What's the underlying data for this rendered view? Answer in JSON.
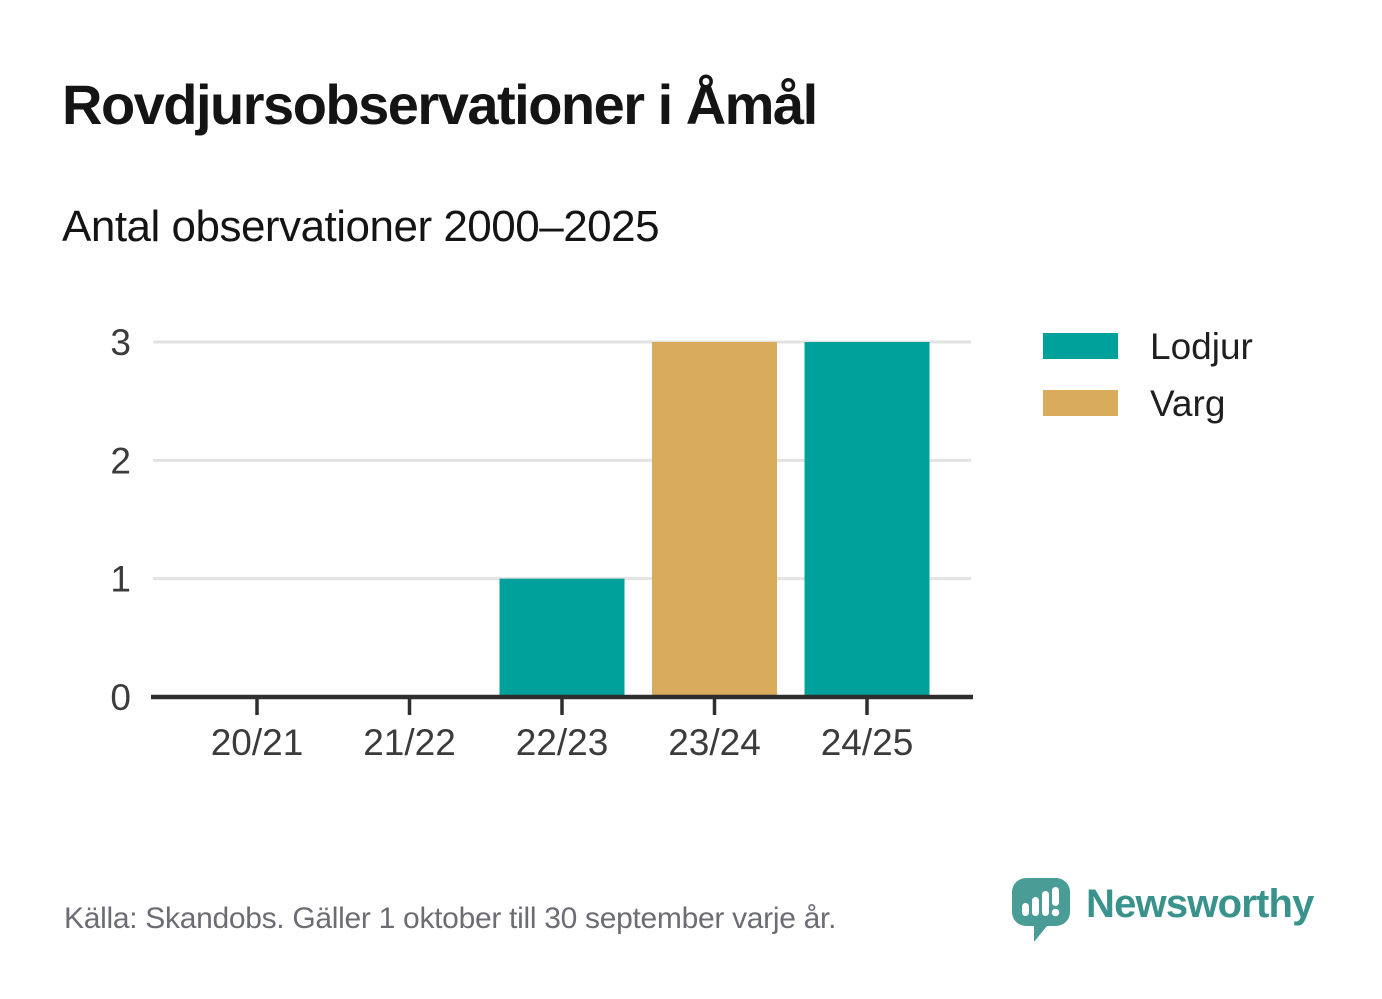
{
  "chart_data": {
    "type": "bar",
    "title": "Rovdjursobservationer i Åmål",
    "subtitle": "Antal observationer 2000–2025",
    "xlabel": "",
    "ylabel": "",
    "categories": [
      "20/21",
      "21/22",
      "22/23",
      "23/24",
      "24/25"
    ],
    "series": [
      {
        "name": "Lodjur",
        "color": "#00A19A",
        "values": [
          0,
          0,
          1,
          0,
          3
        ]
      },
      {
        "name": "Varg",
        "color": "#D9AC5C",
        "values": [
          0,
          0,
          0,
          3,
          0
        ]
      }
    ],
    "ylim": [
      0,
      3
    ],
    "yticks": [
      0,
      1,
      2,
      3
    ],
    "grid": true,
    "legend_position": "right-top"
  },
  "footer": {
    "source": "Källa: Skandobs. Gäller 1 oktober till 30 september varje år.",
    "brand": "Newsworthy"
  },
  "colors": {
    "lodjur_teal": "#00A19A",
    "varg_gold": "#D9AC5C",
    "brand_teal": "#39938C",
    "logo_bubble": "#4A9D97",
    "axis_dark": "#2E2E2E",
    "grid_gray": "#E3E3E3",
    "label_gray": "#3B3B3B",
    "legend_text": "#1F1F1F",
    "source_gray": "#6C6C75"
  }
}
